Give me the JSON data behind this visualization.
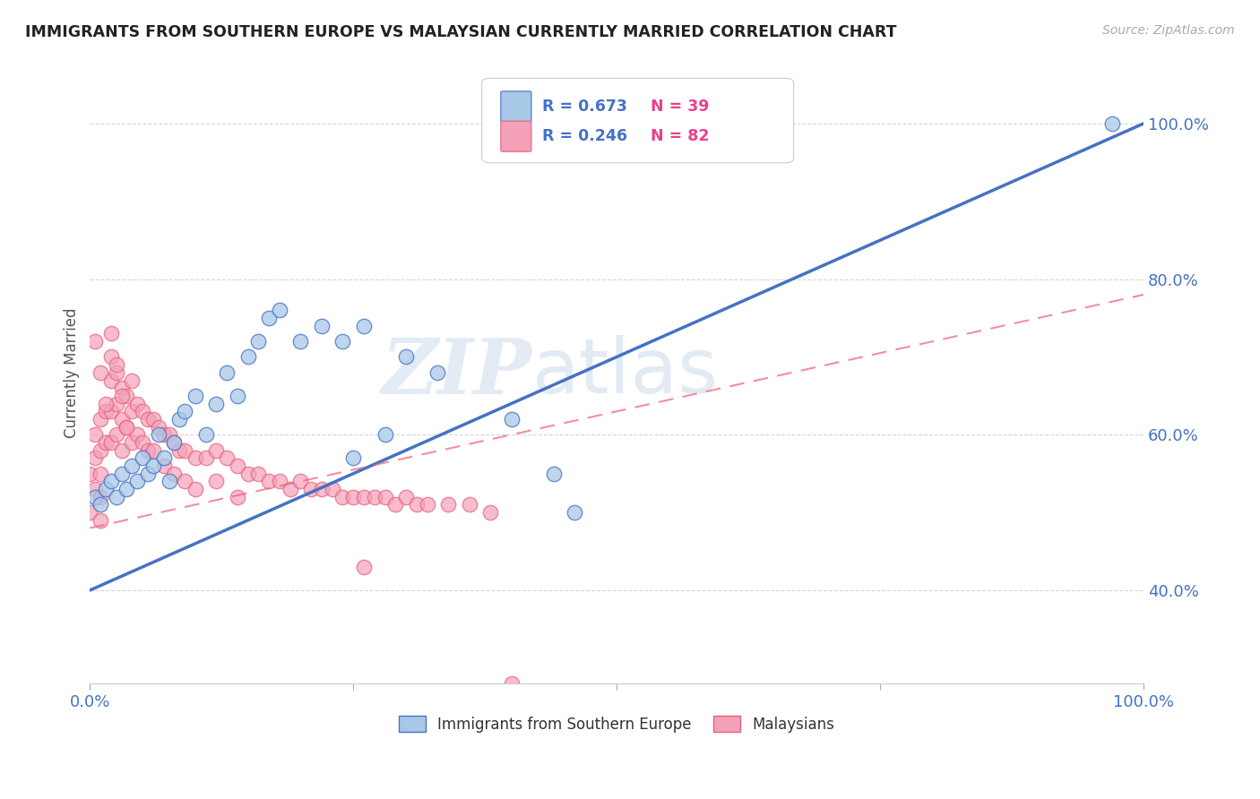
{
  "title": "IMMIGRANTS FROM SOUTHERN EUROPE VS MALAYSIAN CURRENTLY MARRIED CORRELATION CHART",
  "source": "Source: ZipAtlas.com",
  "ylabel": "Currently Married",
  "xlim": [
    0.0,
    1.0
  ],
  "ylim": [
    0.28,
    1.08
  ],
  "y_tick_labels": [
    "40.0%",
    "60.0%",
    "80.0%",
    "100.0%"
  ],
  "y_tick_positions": [
    0.4,
    0.6,
    0.8,
    1.0
  ],
  "legend_r1": "R = 0.673",
  "legend_n1": "N = 39",
  "legend_r2": "R = 0.246",
  "legend_n2": "N = 82",
  "color_blue": "#a8c8e8",
  "color_pink": "#f4a0b8",
  "color_blue_line": "#4472c4",
  "color_pink_line": "#e8607a",
  "watermark_zip": "ZIP",
  "watermark_atlas": "atlas",
  "background_color": "#ffffff",
  "grid_color": "#cccccc",
  "blue_x": [
    0.005,
    0.01,
    0.015,
    0.02,
    0.025,
    0.03,
    0.035,
    0.04,
    0.045,
    0.05,
    0.055,
    0.06,
    0.065,
    0.07,
    0.075,
    0.08,
    0.085,
    0.09,
    0.1,
    0.11,
    0.12,
    0.13,
    0.14,
    0.15,
    0.16,
    0.17,
    0.18,
    0.2,
    0.22,
    0.24,
    0.26,
    0.3,
    0.33,
    0.4,
    0.44,
    0.46,
    0.25,
    0.28,
    0.97
  ],
  "blue_y": [
    0.52,
    0.51,
    0.53,
    0.54,
    0.52,
    0.55,
    0.53,
    0.56,
    0.54,
    0.57,
    0.55,
    0.56,
    0.6,
    0.57,
    0.54,
    0.59,
    0.62,
    0.63,
    0.65,
    0.6,
    0.64,
    0.68,
    0.65,
    0.7,
    0.72,
    0.75,
    0.76,
    0.72,
    0.74,
    0.72,
    0.74,
    0.7,
    0.68,
    0.62,
    0.55,
    0.5,
    0.57,
    0.6,
    1.0
  ],
  "pink_x": [
    0.0,
    0.0,
    0.005,
    0.005,
    0.005,
    0.01,
    0.01,
    0.01,
    0.01,
    0.01,
    0.015,
    0.015,
    0.02,
    0.02,
    0.02,
    0.02,
    0.025,
    0.025,
    0.025,
    0.03,
    0.03,
    0.03,
    0.035,
    0.035,
    0.04,
    0.04,
    0.04,
    0.045,
    0.045,
    0.05,
    0.05,
    0.055,
    0.055,
    0.06,
    0.06,
    0.065,
    0.07,
    0.07,
    0.075,
    0.08,
    0.08,
    0.085,
    0.09,
    0.09,
    0.1,
    0.1,
    0.11,
    0.12,
    0.12,
    0.13,
    0.14,
    0.14,
    0.15,
    0.16,
    0.17,
    0.18,
    0.19,
    0.2,
    0.21,
    0.22,
    0.23,
    0.24,
    0.25,
    0.26,
    0.27,
    0.28,
    0.29,
    0.3,
    0.31,
    0.32,
    0.34,
    0.36,
    0.38,
    0.005,
    0.01,
    0.015,
    0.02,
    0.025,
    0.03,
    0.035,
    0.26,
    0.4
  ],
  "pink_y": [
    0.55,
    0.5,
    0.6,
    0.57,
    0.53,
    0.62,
    0.58,
    0.55,
    0.52,
    0.49,
    0.63,
    0.59,
    0.7,
    0.67,
    0.63,
    0.59,
    0.68,
    0.64,
    0.6,
    0.66,
    0.62,
    0.58,
    0.65,
    0.61,
    0.67,
    0.63,
    0.59,
    0.64,
    0.6,
    0.63,
    0.59,
    0.62,
    0.58,
    0.62,
    0.58,
    0.61,
    0.6,
    0.56,
    0.6,
    0.59,
    0.55,
    0.58,
    0.58,
    0.54,
    0.57,
    0.53,
    0.57,
    0.58,
    0.54,
    0.57,
    0.56,
    0.52,
    0.55,
    0.55,
    0.54,
    0.54,
    0.53,
    0.54,
    0.53,
    0.53,
    0.53,
    0.52,
    0.52,
    0.52,
    0.52,
    0.52,
    0.51,
    0.52,
    0.51,
    0.51,
    0.51,
    0.51,
    0.5,
    0.72,
    0.68,
    0.64,
    0.73,
    0.69,
    0.65,
    0.61,
    0.43,
    0.28
  ]
}
